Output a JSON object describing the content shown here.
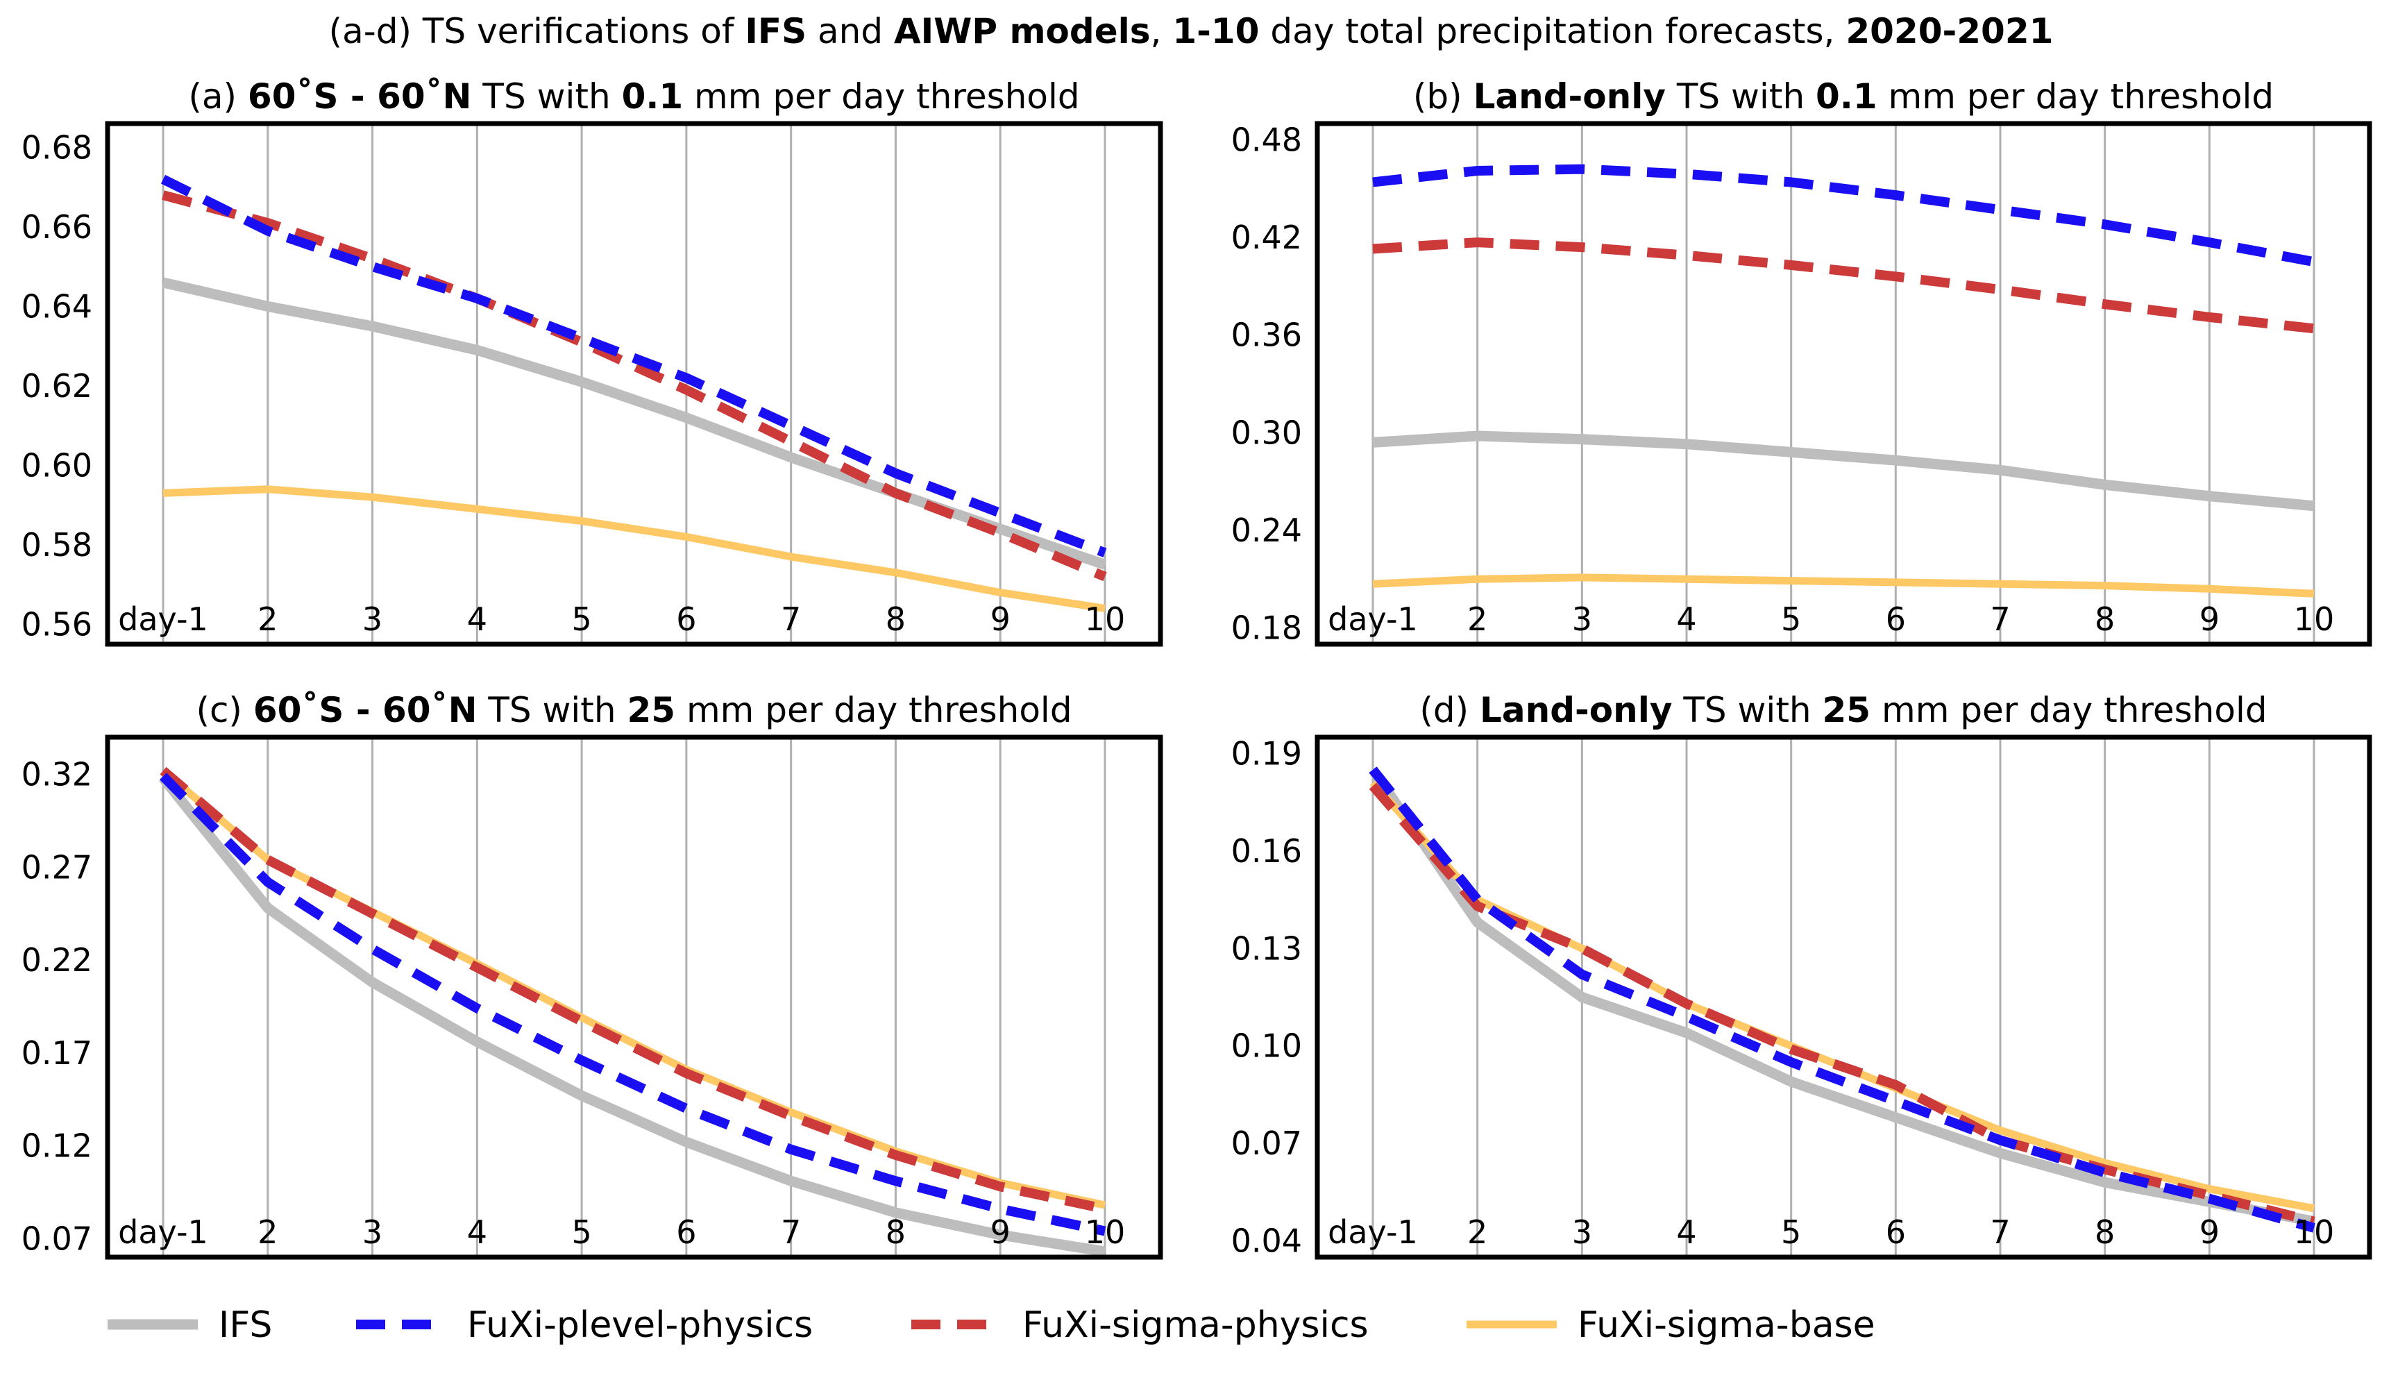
{
  "figure_title": {
    "prefix": "(a-d) TS verifications of ",
    "bold1": "IFS",
    "mid1": " and ",
    "bold2": "AIWP models",
    "mid2": ", ",
    "bold3": "1-10",
    "mid3": " day total precipitation forecasts, ",
    "bold4": "2020-2021"
  },
  "legend": {
    "items": [
      {
        "key": "IFS",
        "label": "IFS"
      },
      {
        "key": "plevel",
        "label": "FuXi-plevel-physics"
      },
      {
        "key": "sigma_phys",
        "label": "FuXi-sigma-physics"
      },
      {
        "key": "sigma_base",
        "label": "FuXi-sigma-base"
      }
    ]
  },
  "colors": {
    "IFS": "#bdbdbd",
    "plevel": "#1a0ff2",
    "sigma_phys": "#cc3a3a",
    "sigma_base": "#fec865",
    "grid": "#b0b0b0",
    "frame": "#000000"
  },
  "chart_data": [
    {
      "id": "a",
      "type": "line",
      "title_parts": [
        {
          "text": "(a) ",
          "bold": false
        },
        {
          "text": "60˚S - 60˚N",
          "bold": true
        },
        {
          "text": " TS with ",
          "bold": false
        },
        {
          "text": "0.1",
          "bold": true
        },
        {
          "text": " mm per day threshold",
          "bold": false
        }
      ],
      "categories": [
        "day-1",
        "2",
        "3",
        "4",
        "5",
        "6",
        "7",
        "8",
        "9",
        "10"
      ],
      "ylim": [
        0.555,
        0.686
      ],
      "yticks": [
        0.56,
        0.58,
        0.6,
        0.62,
        0.64,
        0.66,
        0.68
      ],
      "ytick_labels": [
        "0.56",
        "0.58",
        "0.60",
        "0.62",
        "0.64",
        "0.66",
        "0.68"
      ],
      "grid": "x",
      "series": [
        {
          "key": "IFS",
          "values": [
            0.646,
            0.64,
            0.635,
            0.629,
            0.621,
            0.612,
            0.602,
            0.593,
            0.584,
            0.575
          ]
        },
        {
          "key": "sigma_base",
          "values": [
            0.593,
            0.594,
            0.592,
            0.589,
            0.586,
            0.582,
            0.577,
            0.573,
            0.568,
            0.564
          ]
        },
        {
          "key": "sigma_phys",
          "values": [
            0.668,
            0.661,
            0.652,
            0.642,
            0.631,
            0.619,
            0.606,
            0.593,
            0.583,
            0.572
          ]
        },
        {
          "key": "plevel",
          "values": [
            0.672,
            0.659,
            0.65,
            0.642,
            0.632,
            0.622,
            0.61,
            0.598,
            0.588,
            0.578
          ]
        }
      ]
    },
    {
      "id": "b",
      "type": "line",
      "title_parts": [
        {
          "text": "(b) ",
          "bold": false
        },
        {
          "text": "Land-only",
          "bold": true
        },
        {
          "text": " TS with ",
          "bold": false
        },
        {
          "text": "0.1",
          "bold": true
        },
        {
          "text": " mm per day threshold",
          "bold": false
        }
      ],
      "categories": [
        "day-1",
        "2",
        "3",
        "4",
        "5",
        "6",
        "7",
        "8",
        "9",
        "10"
      ],
      "ylim": [
        0.17,
        0.49
      ],
      "yticks": [
        0.18,
        0.24,
        0.3,
        0.36,
        0.42,
        0.48
      ],
      "ytick_labels": [
        "0.18",
        "0.24",
        "0.30",
        "0.36",
        "0.42",
        "0.48"
      ],
      "grid": "x",
      "series": [
        {
          "key": "IFS",
          "values": [
            0.294,
            0.298,
            0.296,
            0.293,
            0.288,
            0.283,
            0.277,
            0.268,
            0.261,
            0.255
          ]
        },
        {
          "key": "sigma_base",
          "values": [
            0.207,
            0.21,
            0.211,
            0.21,
            0.209,
            0.208,
            0.207,
            0.206,
            0.204,
            0.201
          ]
        },
        {
          "key": "sigma_phys",
          "values": [
            0.413,
            0.417,
            0.414,
            0.409,
            0.403,
            0.396,
            0.388,
            0.379,
            0.371,
            0.364
          ]
        },
        {
          "key": "plevel",
          "values": [
            0.454,
            0.461,
            0.462,
            0.459,
            0.454,
            0.446,
            0.437,
            0.428,
            0.417,
            0.405
          ]
        }
      ]
    },
    {
      "id": "c",
      "type": "line",
      "title_parts": [
        {
          "text": "(c) ",
          "bold": false
        },
        {
          "text": "60˚S - 60˚N",
          "bold": true
        },
        {
          "text": " TS with ",
          "bold": false
        },
        {
          "text": "25",
          "bold": true
        },
        {
          "text": " mm per day threshold",
          "bold": false
        }
      ],
      "categories": [
        "day-1",
        "2",
        "3",
        "4",
        "5",
        "6",
        "7",
        "8",
        "9",
        "10"
      ],
      "ylim": [
        0.06,
        0.34
      ],
      "yticks": [
        0.07,
        0.12,
        0.17,
        0.22,
        0.27,
        0.32
      ],
      "ytick_labels": [
        "0.07",
        "0.12",
        "0.17",
        "0.22",
        "0.27",
        "0.32"
      ],
      "grid": "x",
      "series": [
        {
          "key": "IFS",
          "values": [
            0.318,
            0.248,
            0.208,
            0.176,
            0.147,
            0.122,
            0.101,
            0.084,
            0.072,
            0.063
          ]
        },
        {
          "key": "sigma_base",
          "values": [
            0.322,
            0.274,
            0.246,
            0.218,
            0.189,
            0.161,
            0.138,
            0.117,
            0.1,
            0.088
          ]
        },
        {
          "key": "sigma_phys",
          "values": [
            0.322,
            0.274,
            0.245,
            0.216,
            0.187,
            0.159,
            0.136,
            0.115,
            0.098,
            0.086
          ]
        },
        {
          "key": "plevel",
          "values": [
            0.319,
            0.262,
            0.226,
            0.194,
            0.166,
            0.14,
            0.118,
            0.101,
            0.086,
            0.074
          ]
        }
      ]
    },
    {
      "id": "d",
      "type": "line",
      "title_parts": [
        {
          "text": "(d) ",
          "bold": false
        },
        {
          "text": "Land-only",
          "bold": true
        },
        {
          "text": " TS with ",
          "bold": false
        },
        {
          "text": "25",
          "bold": true
        },
        {
          "text": " mm per day threshold",
          "bold": false
        }
      ],
      "categories": [
        "day-1",
        "2",
        "3",
        "4",
        "5",
        "6",
        "7",
        "8",
        "9",
        "10"
      ],
      "ylim": [
        0.035,
        0.195
      ],
      "yticks": [
        0.04,
        0.07,
        0.1,
        0.13,
        0.16,
        0.19
      ],
      "ytick_labels": [
        "0.04",
        "0.07",
        "0.10",
        "0.13",
        "0.16",
        "0.19"
      ],
      "grid": "x",
      "series": [
        {
          "key": "IFS",
          "values": [
            0.185,
            0.138,
            0.115,
            0.104,
            0.089,
            0.078,
            0.067,
            0.058,
            0.052,
            0.046
          ]
        },
        {
          "key": "sigma_base",
          "values": [
            0.181,
            0.145,
            0.13,
            0.113,
            0.1,
            0.087,
            0.074,
            0.064,
            0.056,
            0.05
          ]
        },
        {
          "key": "sigma_phys",
          "values": [
            0.18,
            0.143,
            0.13,
            0.113,
            0.099,
            0.088,
            0.071,
            0.062,
            0.054,
            0.046
          ]
        },
        {
          "key": "plevel",
          "values": [
            0.185,
            0.145,
            0.122,
            0.109,
            0.095,
            0.083,
            0.071,
            0.061,
            0.053,
            0.044
          ]
        }
      ]
    }
  ]
}
